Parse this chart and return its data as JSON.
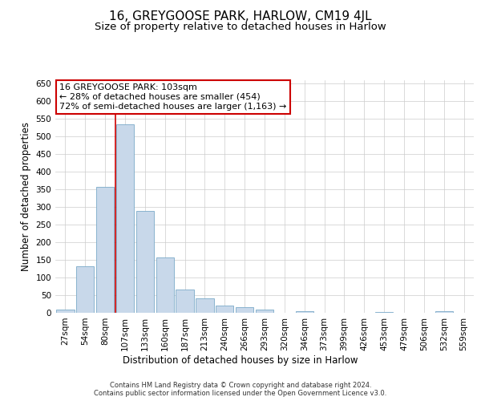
{
  "title": "16, GREYGOOSE PARK, HARLOW, CM19 4JL",
  "subtitle": "Size of property relative to detached houses in Harlow",
  "xlabel": "Distribution of detached houses by size in Harlow",
  "ylabel": "Number of detached properties",
  "categories": [
    "27sqm",
    "54sqm",
    "80sqm",
    "107sqm",
    "133sqm",
    "160sqm",
    "187sqm",
    "213sqm",
    "240sqm",
    "266sqm",
    "293sqm",
    "320sqm",
    "346sqm",
    "373sqm",
    "399sqm",
    "426sqm",
    "453sqm",
    "479sqm",
    "506sqm",
    "532sqm",
    "559sqm"
  ],
  "values": [
    10,
    133,
    358,
    535,
    290,
    157,
    65,
    40,
    20,
    15,
    10,
    0,
    4,
    0,
    0,
    0,
    3,
    0,
    0,
    5,
    0
  ],
  "bar_color": "#c8d8ea",
  "bar_edge_color": "#7aaac8",
  "grid_color": "#cccccc",
  "vline_x_index": 3,
  "vline_color": "#cc0000",
  "annotation_text": "16 GREYGOOSE PARK: 103sqm\n← 28% of detached houses are smaller (454)\n72% of semi-detached houses are larger (1,163) →",
  "annotation_box_color": "white",
  "annotation_box_edge_color": "#cc0000",
  "footer_line1": "Contains HM Land Registry data © Crown copyright and database right 2024.",
  "footer_line2": "Contains public sector information licensed under the Open Government Licence v3.0.",
  "ylim": [
    0,
    660
  ],
  "yticks": [
    0,
    50,
    100,
    150,
    200,
    250,
    300,
    350,
    400,
    450,
    500,
    550,
    600,
    650
  ],
  "background_color": "#ffffff",
  "title_fontsize": 11,
  "subtitle_fontsize": 9.5,
  "tick_fontsize": 7.5,
  "label_fontsize": 8.5,
  "annotation_fontsize": 8,
  "footer_fontsize": 6
}
